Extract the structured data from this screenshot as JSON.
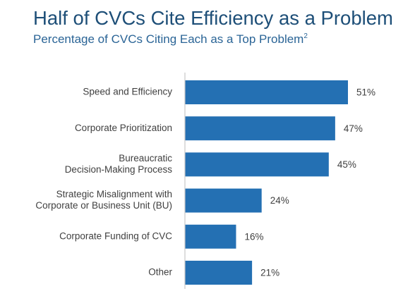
{
  "header": {
    "title": "Half of CVCs Cite Efficiency as a Problem",
    "subtitle": "Percentage of CVCs Citing Each as a Top Problem",
    "footnote_ref": "2"
  },
  "colors": {
    "bar": "#2470b3",
    "title": "#1e4f78",
    "axis": "#c8c8c8",
    "text": "#404040"
  },
  "chart_data": {
    "type": "bar",
    "orientation": "horizontal",
    "title": "Half of CVCs Cite Efficiency as a Problem",
    "subtitle": "Percentage of CVCs Citing Each as a Top Problem",
    "categories": [
      "Speed and Efficiency",
      "Corporate Prioritization",
      "Bureaucratic Decision-Making Process",
      "Strategic Misalignment with Corporate or Business Unit (BU)",
      "Corporate Funding of CVC",
      "Other"
    ],
    "category_lines": [
      [
        "Speed and Efficiency"
      ],
      [
        "Corporate Prioritization"
      ],
      [
        "Bureaucratic",
        "Decision-Making Process"
      ],
      [
        "Strategic Misalignment with",
        "Corporate or Business Unit (BU)"
      ],
      [
        "Corporate Funding of CVC"
      ],
      [
        "Other"
      ]
    ],
    "values": [
      51,
      47,
      45,
      24,
      16,
      21
    ],
    "value_labels": [
      "51%",
      "47%",
      "45%",
      "24%",
      "16%",
      "21%"
    ],
    "unit": "%",
    "xlim": [
      0,
      52
    ],
    "grid": false,
    "legend": "none"
  }
}
